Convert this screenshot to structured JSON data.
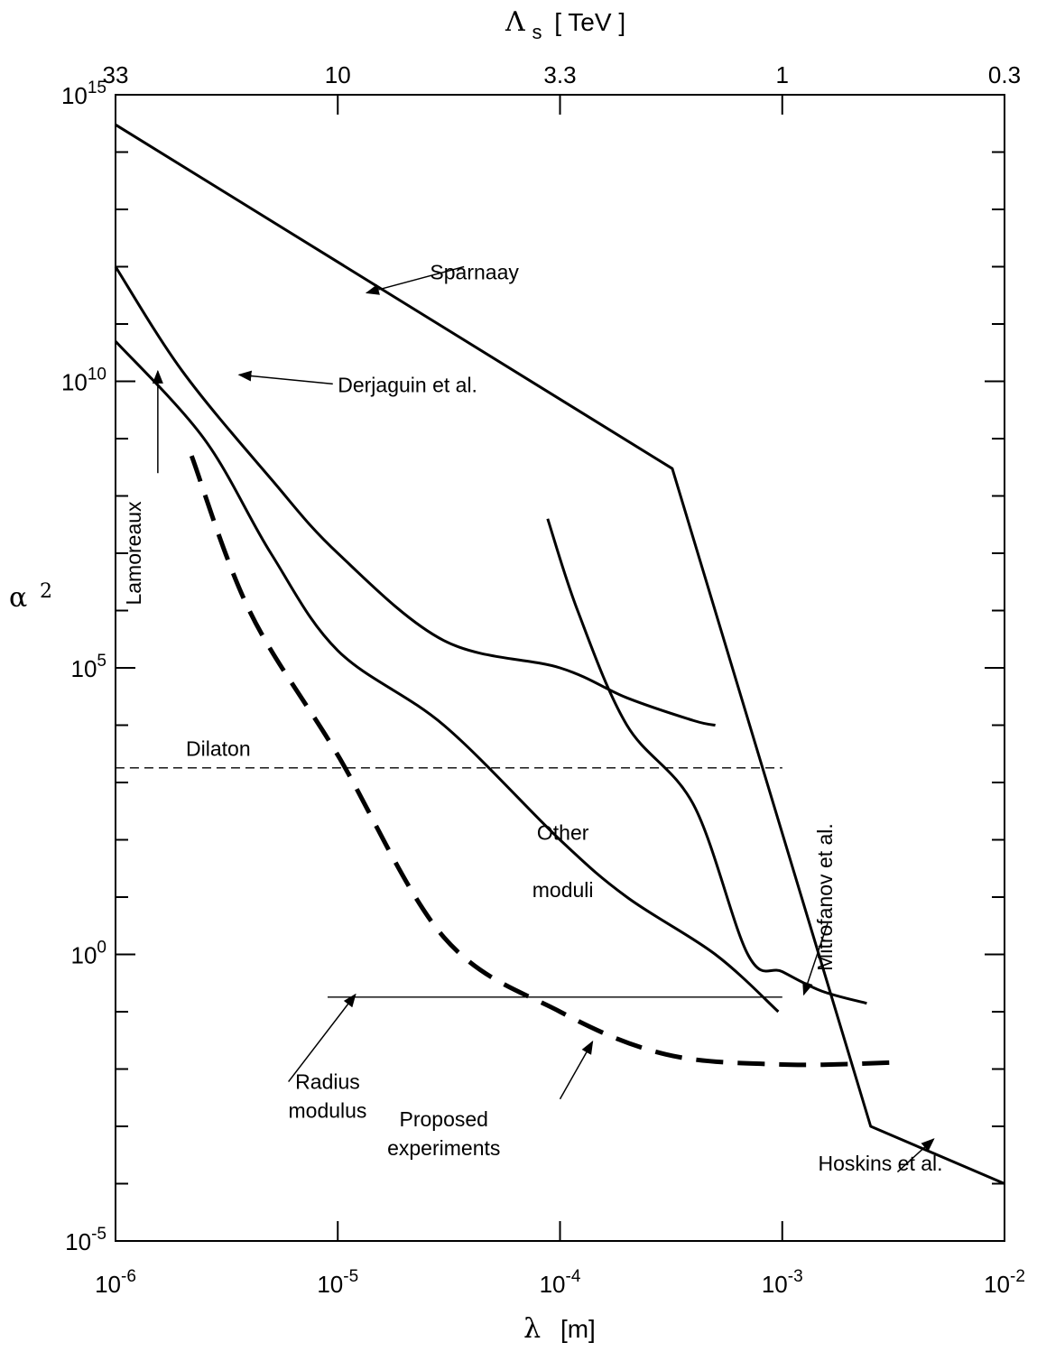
{
  "chart_data": {
    "type": "line",
    "x_scale": "log",
    "y_scale": "log",
    "xlabel_symbol": "λ",
    "xlabel_unit": "[m]",
    "ylabel_symbol": "α",
    "ylabel_sup": "2",
    "top_label_symbol": "Λ",
    "top_label_sub": "s",
    "top_label_unit": "[ TeV ]",
    "xlim": [
      1e-06,
      0.01
    ],
    "ylim": [
      1e-05,
      1000000000000000.0
    ],
    "x_ticks": [
      {
        "value": 1e-06,
        "base": "10",
        "exp": "-6"
      },
      {
        "value": 1e-05,
        "base": "10",
        "exp": "-5"
      },
      {
        "value": 0.0001,
        "base": "10",
        "exp": "-4"
      },
      {
        "value": 0.001,
        "base": "10",
        "exp": "-3"
      },
      {
        "value": 0.01,
        "base": "10",
        "exp": "-2"
      }
    ],
    "y_ticks": [
      {
        "value": 1e-05,
        "base": "10",
        "exp": "-5"
      },
      {
        "value": 1,
        "base": "10",
        "exp": "0"
      },
      {
        "value": 100000.0,
        "base": "10",
        "exp": "5"
      },
      {
        "value": 10000000000.0,
        "base": "10",
        "exp": "10"
      },
      {
        "value": 1000000000000000.0,
        "base": "10",
        "exp": "15"
      }
    ],
    "top_ticks": [
      {
        "value": 1e-06,
        "label": "33"
      },
      {
        "value": 1e-05,
        "label": "10"
      },
      {
        "value": 0.0001,
        "label": "3.3"
      },
      {
        "value": 0.001,
        "label": "1"
      },
      {
        "value": 0.01,
        "label": "0.3"
      }
    ],
    "series": [
      {
        "id": "sparnaay",
        "style": "solid",
        "points": [
          [
            1e-06,
            300000000000000.0
          ],
          [
            0.00032,
            300000000.0
          ],
          [
            0.0025,
            0.001
          ],
          [
            0.01,
            0.0001
          ]
        ]
      },
      {
        "id": "derjaguin",
        "style": "solid",
        "points": [
          [
            1e-06,
            1000000000000.0
          ],
          [
            2e-06,
            15000000000.0
          ],
          [
            5e-06,
            200000000.0
          ],
          [
            1e-05,
            10000000.0
          ],
          [
            3e-05,
            300000.0
          ],
          [
            0.0001,
            100000.0
          ],
          [
            0.0002,
            30000.0
          ],
          [
            0.0004,
            12000.0
          ],
          [
            0.0005,
            10000.0
          ]
        ]
      },
      {
        "id": "lamoreaux",
        "style": "solid",
        "points": [
          [
            1e-06,
            50000000000.0
          ],
          [
            2.5e-06,
            1000000000.0
          ],
          [
            5e-06,
            10000000.0
          ],
          [
            1e-05,
            200000.0
          ],
          [
            3e-05,
            10000.0
          ],
          [
            0.0001,
            100.0
          ],
          [
            0.0002,
            10.0
          ],
          [
            0.0005,
            1
          ],
          [
            0.00096,
            0.1
          ]
        ]
      },
      {
        "id": "mitrofanov",
        "style": "solid",
        "points": [
          [
            8.8e-05,
            40000000.0
          ],
          [
            0.00012,
            1000000.0
          ],
          [
            0.0002,
            10000.0
          ],
          [
            0.0004,
            400.0
          ],
          [
            0.0007,
            1.0
          ],
          [
            0.001,
            0.5
          ],
          [
            0.0015,
            0.23
          ],
          [
            0.0024,
            0.14
          ]
        ]
      },
      {
        "id": "proposed",
        "style": "thick-dashed",
        "points": [
          [
            2.2e-06,
            500000000.0
          ],
          [
            4e-06,
            1000000.0
          ],
          [
            1e-05,
            3000.0
          ],
          [
            3e-05,
            2.0
          ],
          [
            0.0001,
            0.1
          ],
          [
            0.0003,
            0.018
          ],
          [
            0.001,
            0.012
          ],
          [
            0.0032,
            0.013
          ]
        ]
      },
      {
        "id": "dilaton",
        "style": "dashed",
        "points": [
          [
            1e-06,
            1800.0
          ],
          [
            0.001,
            1800.0
          ]
        ]
      },
      {
        "id": "radius-modulus",
        "style": "thin",
        "points": [
          [
            9e-06,
            0.18
          ],
          [
            0.001,
            0.18
          ]
        ]
      }
    ],
    "annotations": [
      {
        "text": "Sparnaay",
        "tx": 2.6e-05,
        "ty": 600000000000.0,
        "ax": 3.7e-05,
        "ay": 1000000000000.0,
        "hx": 1.35e-05,
        "hy": 350000000000.0
      },
      {
        "text": "Derjaguin et al.",
        "tx": 1e-05,
        "ty": 6500000000.0,
        "ax": 9.5e-06,
        "ay": 9000000000.0,
        "hx": 3.6e-06,
        "hy": 13000000000.0
      },
      {
        "text": "Radius modulus",
        "tx": 9e-06,
        "ty": 0.0045,
        "ax": 6e-06,
        "ay": 0.006,
        "hx": 1.2e-05,
        "hy": 0.2
      },
      {
        "text": "Proposed experiments",
        "tx": 3e-05,
        "ty": 0.001,
        "ax": 0.0001,
        "ay": 0.003,
        "hx": 0.00014,
        "hy": 0.03
      },
      {
        "text": "Hoskins et al.",
        "tx": 0.00145,
        "ty": 0.00017,
        "ax": 0.0033,
        "ay": 0.00016,
        "hx": 0.0048,
        "hy": 0.0006
      },
      {
        "text": "Mitrofanov et al.",
        "tx": 0.00168,
        "ty": 10,
        "ax": 0.0016,
        "ay": 3.5,
        "hx": 0.00125,
        "hy": 0.2
      },
      {
        "text": "Lamoreaux",
        "tx": 1.3e-06,
        "ty": 10000000.0,
        "ax": 1.55e-06,
        "ay": 250000000.0,
        "hx": 1.55e-06,
        "hy": 15000000000.0
      },
      {
        "text": "Dilaton",
        "tx": 2.9e-06,
        "ty": 2900.0
      },
      {
        "text": "Other",
        "tx": 0.000103,
        "ty": 100.0
      },
      {
        "text": "moduli",
        "tx": 0.000103,
        "ty": 10.0
      }
    ]
  }
}
